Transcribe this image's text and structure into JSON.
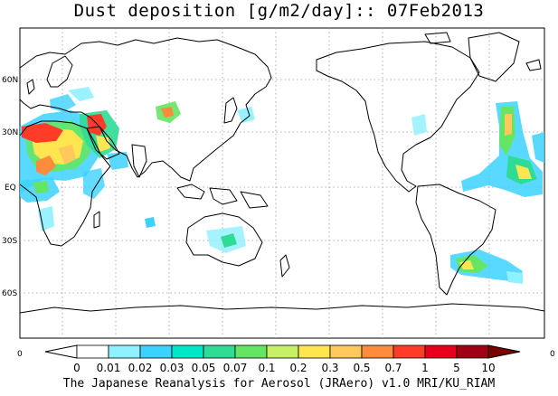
{
  "map": {
    "title": "Dust deposition [g/m2/day]:: 07Feb2013",
    "lat_labels": [
      "60N",
      "30N",
      "EQ",
      "30S",
      "60S"
    ],
    "edge_labels": {
      "left": "0",
      "right": "0"
    },
    "colorbar_ticks": [
      "0",
      "0.01",
      "0.02",
      "0.03",
      "0.05",
      "0.07",
      "0.1",
      "0.2",
      "0.3",
      "0.5",
      "0.7",
      "1",
      "5",
      "10"
    ],
    "colorbar_colors": [
      "#ffffff",
      "#8ff0ff",
      "#3cd2ff",
      "#00e6c8",
      "#2edc96",
      "#64e664",
      "#c8f064",
      "#ffe650",
      "#ffc85a",
      "#ff8c3c",
      "#ff3c28",
      "#e6001e",
      "#a00014",
      "#780000"
    ],
    "credit": "The Japanese Reanalysis for Aerosol (JRAero) v1.0 MRI/KU_RIAM"
  }
}
